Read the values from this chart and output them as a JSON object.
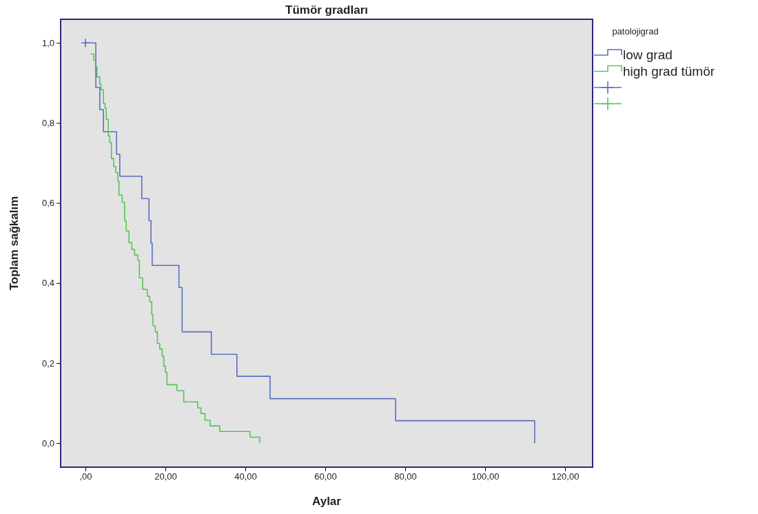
{
  "chart_data": {
    "type": "step",
    "title": "Tümör gradları",
    "xlabel": "Aylar",
    "ylabel": "Toplam sağkalım",
    "legend_title": "patolojigrad",
    "legend": "top right",
    "grid": false,
    "xlim": [
      -6.2,
      126.9
    ],
    "ylim": [
      -0.06,
      1.059
    ],
    "xticks": [
      {
        "value": 0,
        "label": ",00"
      },
      {
        "value": 20,
        "label": "20,00"
      },
      {
        "value": 40,
        "label": "40,00"
      },
      {
        "value": 60,
        "label": "60,00"
      },
      {
        "value": 80,
        "label": "80,00"
      },
      {
        "value": 100,
        "label": "100,00"
      },
      {
        "value": 120,
        "label": "120,00"
      }
    ],
    "yticks": [
      {
        "value": 0,
        "label": "0,0"
      },
      {
        "value": 0.2,
        "label": "0,2"
      },
      {
        "value": 0.4,
        "label": "0,4"
      },
      {
        "value": 0.6,
        "label": "0,6"
      },
      {
        "value": 0.8,
        "label": "0,8"
      },
      {
        "value": 1,
        "label": "1,0"
      }
    ],
    "series": [
      {
        "name": "low grad",
        "color": "#5b6ec0",
        "x": [
          0,
          2.6,
          3.6,
          4.5,
          7.8,
          8.6,
          14.1,
          15.9,
          16.4,
          16.7,
          23.4,
          24.2,
          31.5,
          37.9,
          46.2,
          77.6,
          112.4
        ],
        "values": [
          1,
          0.889,
          0.833,
          0.778,
          0.722,
          0.667,
          0.611,
          0.556,
          0.5,
          0.444,
          0.389,
          0.278,
          0.222,
          0.167,
          0.111,
          0.056,
          0
        ]
      },
      {
        "name": "high grad tümör",
        "color": "#55c45a",
        "x": [
          1.3,
          2.1,
          2.5,
          2.9,
          3.6,
          3.9,
          4.5,
          4.9,
          5.2,
          5.7,
          6.1,
          6.5,
          7.1,
          7.6,
          8.1,
          8.4,
          9.2,
          9.8,
          10.2,
          10.9,
          11.6,
          12.3,
          13.1,
          13.5,
          14.3,
          15.5,
          16.1,
          16.6,
          16.9,
          17.5,
          18.0,
          18.6,
          19.2,
          19.6,
          20.0,
          20.4,
          22.9,
          24.6,
          28.1,
          28.9,
          29.9,
          31.2,
          33.6,
          41.2,
          43.6
        ],
        "values": [
          0.972,
          0.957,
          0.94,
          0.915,
          0.897,
          0.883,
          0.849,
          0.837,
          0.809,
          0.768,
          0.751,
          0.711,
          0.691,
          0.676,
          0.654,
          0.62,
          0.602,
          0.556,
          0.53,
          0.501,
          0.484,
          0.47,
          0.456,
          0.413,
          0.384,
          0.367,
          0.353,
          0.321,
          0.293,
          0.278,
          0.249,
          0.235,
          0.217,
          0.192,
          0.177,
          0.146,
          0.131,
          0.103,
          0.088,
          0.074,
          0.057,
          0.043,
          0.029,
          0.015,
          0
        ]
      },
      {
        "type": "scatter",
        "marker": "cross",
        "color": "#5b6ec0",
        "x": [
          0
        ],
        "values": [
          1
        ]
      }
    ]
  }
}
